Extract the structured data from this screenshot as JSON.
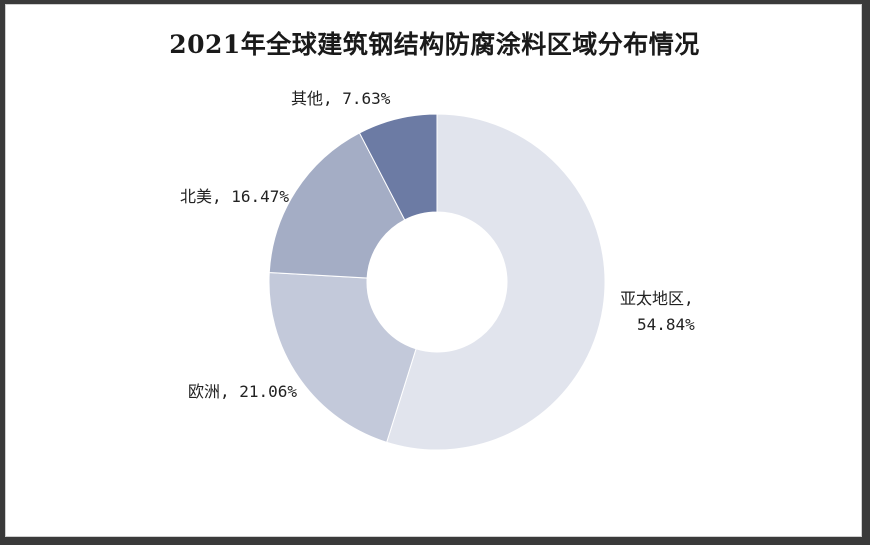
{
  "chart_data": {
    "type": "pie",
    "variant": "donut",
    "title": "2021年全球建筑钢结构防腐涂料区域分布情况",
    "slices": [
      {
        "name": "亚太地区",
        "value": 54.84,
        "label": "54.84%",
        "color": "#e1e4ed"
      },
      {
        "name": "欧洲",
        "value": 21.06,
        "label": "21.06%",
        "color": "#c3c9da"
      },
      {
        "name": "北美",
        "value": 16.47,
        "label": "16.47%",
        "color": "#a4adc5"
      },
      {
        "name": "其他",
        "value": 7.63,
        "label": "7.63%",
        "color": "#6c7ba4"
      }
    ],
    "start_angle_deg": 0,
    "direction": "clockwise",
    "legend": "none"
  },
  "labels": {
    "asia_line1": "亚太地区,",
    "asia_line2": "54.84%",
    "europe": "欧洲, 21.06%",
    "namerica": "北美, 16.47%",
    "other": "其他, 7.63%"
  }
}
